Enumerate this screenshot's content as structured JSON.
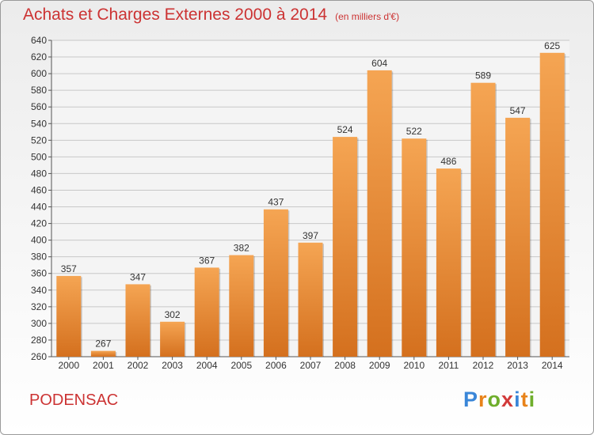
{
  "header": {
    "title": "Achats et Charges Externes 2000 à 2014",
    "unit": "(en milliers d'€)"
  },
  "footer": {
    "town": "PODENSAC",
    "logo": [
      "P",
      "r",
      "o",
      "x",
      "i",
      "t",
      "i"
    ]
  },
  "chart_data": {
    "type": "bar",
    "categories": [
      "2000",
      "2001",
      "2002",
      "2003",
      "2004",
      "2005",
      "2006",
      "2007",
      "2008",
      "2009",
      "2010",
      "2011",
      "2012",
      "2013",
      "2014"
    ],
    "values": [
      357,
      267,
      347,
      302,
      367,
      382,
      437,
      397,
      524,
      604,
      522,
      486,
      589,
      547,
      625
    ],
    "title": "Achats et Charges Externes 2000 à 2014",
    "xlabel": "",
    "ylabel": "",
    "ylim": [
      260,
      640
    ],
    "yticks": [
      260,
      280,
      300,
      320,
      340,
      360,
      380,
      400,
      420,
      440,
      460,
      480,
      500,
      520,
      540,
      560,
      580,
      600,
      620,
      640
    ],
    "grid": "horizontal",
    "bar_color_top": "#f5a553",
    "bar_color_bottom": "#d4701e"
  }
}
